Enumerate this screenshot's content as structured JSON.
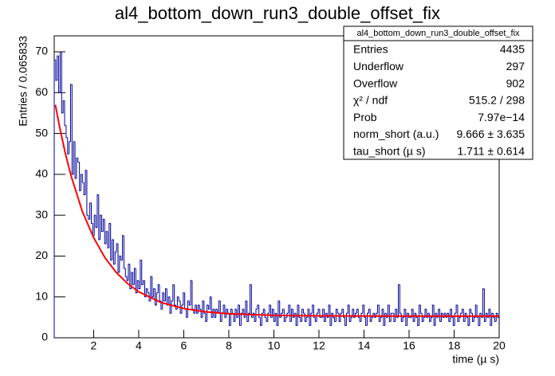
{
  "chart_data": {
    "type": "histogram",
    "title": "al4_bottom_down_run3_double_offset_fix",
    "x_label": "time (µ s)",
    "y_label": "Entries / 0.065833",
    "color": "#000099",
    "xlim": [
      0.25,
      20
    ],
    "ylim": [
      0,
      73.9
    ],
    "xticks": [
      2,
      4,
      6,
      8,
      10,
      12,
      14,
      16,
      18,
      20
    ],
    "yticks": [
      0,
      10,
      20,
      30,
      40,
      50,
      60,
      70
    ],
    "bins": [
      0.25,
      0.3158,
      0.3817,
      0.4475,
      0.5133,
      0.5792,
      0.645,
      0.7108,
      0.7767,
      0.8425,
      0.9083,
      0.9742,
      1.04,
      1.1058,
      1.1717,
      1.2375,
      1.3033,
      1.3692,
      1.435,
      1.5008,
      1.5667,
      1.6325,
      1.6983,
      1.7642,
      1.83,
      1.8958,
      1.9617,
      2.0275,
      2.0933,
      2.1592,
      2.225,
      2.2908,
      2.3567,
      2.4225,
      2.4883,
      2.5542,
      2.62,
      2.6858,
      2.7517,
      2.8175,
      2.8833,
      2.9492,
      3.015,
      3.0808,
      3.1467,
      3.2125,
      3.2783,
      3.3442,
      3.41,
      3.4758,
      3.5417,
      3.6075,
      3.6733,
      3.7392,
      3.805,
      3.8708,
      3.9367,
      4.0025,
      4.0683,
      4.1342,
      4.2,
      4.2658,
      4.3317,
      4.3975,
      4.4633,
      4.5292,
      4.595,
      4.6608,
      4.7267,
      4.7925,
      4.8583,
      4.9242,
      4.99,
      5.0558,
      5.1217,
      5.1875,
      5.2533,
      5.3192,
      5.385,
      5.4508,
      5.5167,
      5.5825,
      5.6483,
      5.7142,
      5.78,
      5.8458,
      5.9117,
      5.9775,
      6.0433,
      6.1092,
      6.175,
      6.2408,
      6.3067,
      6.3725,
      6.4383,
      6.5042,
      6.57,
      6.6358,
      6.7017,
      6.7675,
      6.8333,
      6.8992,
      6.965,
      7.0308,
      7.0967,
      7.1625,
      7.2283,
      7.2942,
      7.36,
      7.4258,
      7.4917,
      7.5575,
      7.6233,
      7.6892,
      7.755,
      7.8208,
      7.8867,
      7.9525,
      8.0183,
      8.0842,
      8.15,
      8.2158,
      8.2817,
      8.3475,
      8.4133,
      8.4792,
      8.545,
      8.6108,
      8.6767,
      8.7425,
      8.8083,
      8.8742,
      8.94,
      9.0058,
      9.0717,
      9.1375,
      9.2033,
      9.2692,
      9.335,
      9.4008,
      9.4667,
      9.5325,
      9.5983,
      9.6642,
      9.73,
      9.7958,
      9.8617,
      9.9275,
      9.9933,
      10.0592,
      10.125,
      10.1908,
      10.2567,
      10.3225,
      10.3883,
      10.4542,
      10.52,
      10.5858,
      10.6517,
      10.7175,
      10.7833,
      10.8492,
      10.915,
      10.9808,
      11.0467,
      11.1125,
      11.1783,
      11.2442,
      11.31,
      11.3758,
      11.4417,
      11.5075,
      11.5733,
      11.6392,
      11.705,
      11.7708,
      11.8367,
      11.9025,
      11.9683,
      12.0342,
      12.1,
      12.1658,
      12.2317,
      12.2975,
      12.3633,
      12.4292,
      12.495,
      12.5608,
      12.6267,
      12.6925,
      12.7583,
      12.8242,
      12.89,
      12.9558,
      13.0217,
      13.0875,
      13.1533,
      13.2192,
      13.285,
      13.3508,
      13.4167,
      13.4825,
      13.5483,
      13.6142,
      13.68,
      13.7458,
      13.8117,
      13.8775,
      13.9433,
      14.0092,
      14.075,
      14.1408,
      14.2067,
      14.2725,
      14.3383,
      14.4042,
      14.47,
      14.5358,
      14.6017,
      14.6675,
      14.7333,
      14.7992,
      14.865,
      14.9308,
      14.9967,
      15.0625,
      15.1283,
      15.1942,
      15.26,
      15.3258,
      15.3917,
      15.4575,
      15.5233,
      15.5892,
      15.655,
      15.7208,
      15.7867,
      15.8525,
      15.9183,
      15.9842,
      16.05,
      16.1158,
      16.1817,
      16.2475,
      16.3133,
      16.3792,
      16.445,
      16.5108,
      16.5767,
      16.6425,
      16.7083,
      16.7742,
      16.84,
      16.9058,
      16.9717,
      17.0375,
      17.1033,
      17.1692,
      17.235,
      17.3008,
      17.3667,
      17.4325,
      17.4983,
      17.5642,
      17.63,
      17.6958,
      17.7617,
      17.8275,
      17.8933,
      17.9592,
      18.025,
      18.0908,
      18.1567,
      18.2225,
      18.2883,
      18.3542,
      18.42,
      18.4858,
      18.5517,
      18.6175,
      18.6833,
      18.7492,
      18.815,
      18.8808,
      18.9467,
      19.0125,
      19.0783,
      19.1442,
      19.21,
      19.2758,
      19.3417,
      19.4075,
      19.4733,
      19.5392,
      19.605,
      19.6708,
      19.7367,
      19.8025,
      19.8683,
      19.9342,
      20
    ],
    "values": [
      68,
      63,
      69,
      60,
      70,
      55,
      58,
      52,
      49,
      45,
      48,
      62,
      40,
      48,
      39,
      44,
      43,
      36,
      40,
      38,
      35,
      41,
      30,
      29,
      33,
      28,
      25,
      30,
      27,
      35,
      24,
      30,
      26,
      29,
      23,
      26,
      22,
      28,
      19,
      24,
      18,
      21,
      23,
      16,
      20,
      19,
      25,
      17,
      15,
      14,
      18,
      12,
      16,
      13,
      17,
      11,
      14,
      12,
      19,
      13,
      14,
      10,
      12,
      11,
      9,
      15,
      10,
      12,
      8,
      11,
      13,
      9,
      7,
      11,
      9,
      12,
      8,
      10,
      6,
      9,
      13,
      8,
      7,
      10,
      9,
      6,
      8,
      11,
      7,
      5,
      9,
      8,
      14,
      7,
      6,
      8,
      6,
      8,
      7,
      5,
      9,
      6,
      4,
      8,
      7,
      10,
      5,
      7,
      5,
      7,
      6,
      9,
      4,
      6,
      8,
      5,
      7,
      6,
      3,
      7,
      6,
      4,
      7,
      5,
      8,
      3,
      6,
      7,
      5,
      9,
      4,
      6,
      13,
      5,
      6,
      4,
      7,
      8,
      5,
      3,
      6,
      7,
      5,
      4,
      6,
      8,
      5,
      7,
      4,
      6,
      3,
      9,
      5,
      6,
      7,
      4,
      5,
      6,
      8,
      4,
      7,
      5,
      6,
      3,
      8,
      5,
      4,
      7,
      6,
      4,
      5,
      7,
      3,
      6,
      8,
      5,
      4,
      6,
      7,
      5,
      5,
      7,
      4,
      6,
      5,
      8,
      3,
      6,
      5,
      4,
      7,
      6,
      4,
      6,
      7,
      5,
      3,
      6,
      8,
      4,
      5,
      7,
      5,
      6,
      7,
      5,
      4,
      6,
      8,
      5,
      3,
      6,
      7,
      4,
      5,
      6,
      5,
      6,
      8,
      4,
      5,
      7,
      3,
      6,
      5,
      8,
      4,
      6,
      6,
      4,
      7,
      5,
      13,
      6,
      4,
      5,
      7,
      3,
      6,
      5,
      5,
      7,
      4,
      6,
      5,
      3,
      8,
      6,
      4,
      5,
      7,
      5,
      6,
      4,
      5,
      8,
      3,
      6,
      5,
      7,
      4,
      6,
      5,
      6,
      5,
      6,
      4,
      7,
      5,
      3,
      6,
      8,
      4,
      5,
      6,
      7,
      4,
      6,
      5,
      3,
      7,
      6,
      4,
      5,
      8,
      5,
      3,
      6,
      5,
      12,
      4,
      6,
      5,
      7,
      3,
      6,
      5,
      4,
      6,
      5
    ],
    "fit": {
      "color": "#ff0000",
      "x": [
        0.3,
        0.5,
        0.75,
        1,
        1.5,
        2,
        2.5,
        3,
        3.5,
        4,
        5,
        6,
        7,
        8,
        10,
        12,
        15,
        20
      ],
      "y": [
        57.0,
        51.3,
        45.0,
        39.6,
        30.9,
        24.5,
        19.6,
        16.0,
        13.3,
        11.25,
        8.62,
        7.15,
        6.33,
        5.87,
        5.48,
        5.36,
        5.31,
        5.3
      ]
    },
    "stats": {
      "title": "al4_bottom_down_run3_double_offset_fix",
      "rows": [
        [
          "Entries",
          "4435"
        ],
        [
          "Underflow",
          "297"
        ],
        [
          "Overflow",
          "902"
        ],
        [
          "χ² / ndf",
          "515.2 / 298"
        ],
        [
          "Prob",
          "7.97e−14"
        ],
        [
          "norm_short (a.u.)",
          "9.666 ± 3.635"
        ],
        [
          "tau_short (µ s)",
          "1.711 ± 0.614"
        ]
      ]
    }
  }
}
